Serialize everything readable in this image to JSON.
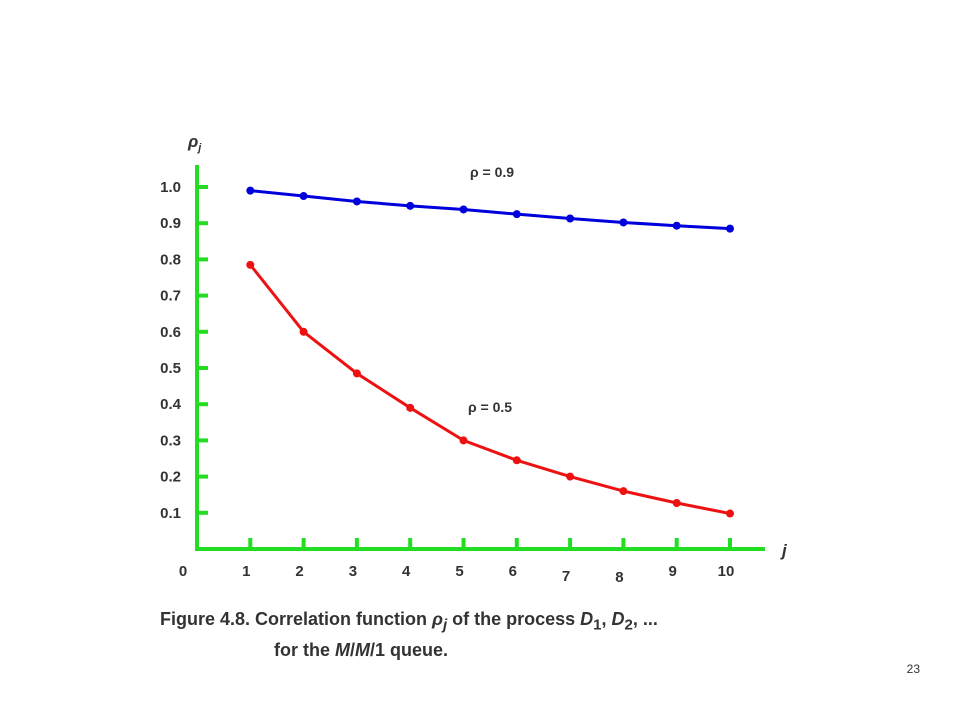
{
  "chart_data": {
    "type": "line",
    "ylabel": "ρj",
    "ylabel_base": "ρ",
    "ylabel_sub": "j",
    "xlabel": "j",
    "origin_label": "0",
    "x_ticks": [
      "1",
      "2",
      "3",
      "4",
      "5",
      "6",
      "7",
      "8",
      "9",
      "10"
    ],
    "y_ticks": [
      "0.1",
      "0.2",
      "0.3",
      "0.4",
      "0.5",
      "0.6",
      "0.7",
      "0.8",
      "0.9",
      "1.0"
    ],
    "xlim": [
      0,
      10.3
    ],
    "ylim": [
      0,
      1.05
    ],
    "grid": false,
    "axis_color": "#22dd22",
    "series": [
      {
        "name": "ρ = 0.9",
        "color": "#0000dd",
        "x": [
          1,
          2,
          3,
          4,
          5,
          6,
          7,
          8,
          9,
          10
        ],
        "values": [
          0.99,
          0.975,
          0.96,
          0.948,
          0.938,
          0.925,
          0.913,
          0.902,
          0.893,
          0.885
        ]
      },
      {
        "name": "ρ = 0.5",
        "color": "#ee1111",
        "x": [
          1,
          2,
          3,
          4,
          5,
          6,
          7,
          8,
          9,
          10
        ],
        "values": [
          0.785,
          0.6,
          0.485,
          0.39,
          0.3,
          0.245,
          0.2,
          0.16,
          0.127,
          0.098
        ]
      }
    ]
  },
  "caption": {
    "prefix": "Figure 4.8. Correlation function ",
    "rho": "ρ",
    "rho_sub": "j",
    "of_process": " of the process ",
    "d": "D",
    "d1_sub": "1",
    "sep": ", ",
    "d2_sub": "2",
    "ellipsis": ", ...",
    "line2_prefix": "for the ",
    "queue_m1": "M",
    "slash": "/",
    "queue_m2": "M",
    "queue_1": "/1",
    "line2_suffix": " queue."
  },
  "page_number": "23"
}
